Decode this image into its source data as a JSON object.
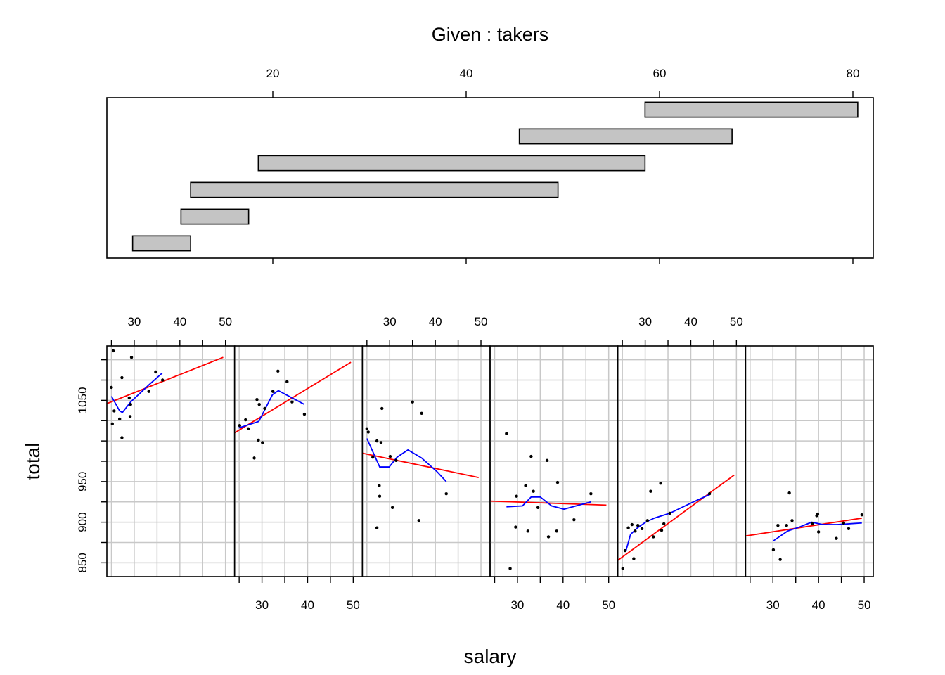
{
  "chart_data": {
    "type": "scatter",
    "title": "Given : takers",
    "xlabel": "salary",
    "ylabel": "total",
    "given": {
      "variable": "takers",
      "range": [
        5,
        82
      ],
      "ticks": [
        20,
        40,
        60,
        80
      ],
      "intervals": [
        [
          5.5,
          11.5
        ],
        [
          10.5,
          17.5
        ],
        [
          11.5,
          49.5
        ],
        [
          18.5,
          58.5
        ],
        [
          45.5,
          67.5
        ],
        [
          58.5,
          80.5
        ]
      ]
    },
    "x_ticks": [
      30,
      40,
      50
    ],
    "y_ticks": [
      850,
      900,
      950,
      1050
    ],
    "xlim": [
      24,
      52
    ],
    "ylim": [
      833,
      1117
    ],
    "grid": true,
    "fit_colors": {
      "linear": "#ff0000",
      "loess": "#0000ff"
    },
    "panels": [
      {
        "points": [
          [
            25.0,
            1066
          ],
          [
            25.4,
            1111
          ],
          [
            25.2,
            1021
          ],
          [
            25.6,
            1037
          ],
          [
            26.8,
            1027
          ],
          [
            27.3,
            1004
          ],
          [
            27.3,
            1078
          ],
          [
            28.9,
            1053
          ],
          [
            29.2,
            1045
          ],
          [
            29.1,
            1030
          ],
          [
            29.4,
            1103
          ],
          [
            33.2,
            1061
          ],
          [
            34.7,
            1085
          ],
          [
            36.2,
            1075
          ]
        ],
        "linear": [
          [
            24.0,
            1046
          ],
          [
            49.5,
            1103
          ]
        ],
        "loess": [
          [
            25.0,
            1055
          ],
          [
            26.8,
            1037
          ],
          [
            27.4,
            1035
          ],
          [
            29.2,
            1048
          ],
          [
            33.2,
            1069
          ],
          [
            36.2,
            1084
          ]
        ]
      },
      {
        "points": [
          [
            25.1,
            1019
          ],
          [
            26.4,
            1026
          ],
          [
            27.0,
            1015
          ],
          [
            28.3,
            979
          ],
          [
            28.9,
            1051
          ],
          [
            29.4,
            1045
          ],
          [
            29.2,
            1001
          ],
          [
            30.1,
            998
          ],
          [
            30.6,
            1040
          ],
          [
            32.4,
            1061
          ],
          [
            33.5,
            1086
          ],
          [
            35.5,
            1073
          ],
          [
            36.6,
            1048
          ],
          [
            39.3,
            1033
          ]
        ],
        "linear": [
          [
            24.0,
            1010
          ],
          [
            49.5,
            1097
          ]
        ],
        "loess": [
          [
            24.9,
            1016
          ],
          [
            27.1,
            1020
          ],
          [
            29.3,
            1024
          ],
          [
            32.3,
            1057
          ],
          [
            33.6,
            1062
          ],
          [
            39.3,
            1045
          ]
        ]
      },
      {
        "points": [
          [
            25.0,
            1015
          ],
          [
            25.3,
            1011
          ],
          [
            26.3,
            980
          ],
          [
            27.2,
            1000
          ],
          [
            27.8,
            932
          ],
          [
            27.7,
            945
          ],
          [
            28.1,
            998
          ],
          [
            28.3,
            1040
          ],
          [
            30.1,
            981
          ],
          [
            27.2,
            893
          ],
          [
            30.6,
            918
          ],
          [
            31.4,
            976
          ],
          [
            35.0,
            1048
          ],
          [
            36.4,
            902
          ],
          [
            37.0,
            1034
          ],
          [
            42.4,
            935
          ]
        ],
        "linear": [
          [
            24.0,
            985
          ],
          [
            49.5,
            955
          ]
        ],
        "loess": [
          [
            25.0,
            1003
          ],
          [
            27.8,
            968
          ],
          [
            29.9,
            968
          ],
          [
            31.6,
            980
          ],
          [
            34.0,
            989
          ],
          [
            37.0,
            979
          ],
          [
            40.4,
            962
          ],
          [
            42.4,
            950
          ]
        ]
      },
      {
        "points": [
          [
            27.6,
            1009
          ],
          [
            28.4,
            843
          ],
          [
            29.6,
            894
          ],
          [
            29.8,
            932
          ],
          [
            31.8,
            945
          ],
          [
            32.3,
            889
          ],
          [
            33.0,
            981
          ],
          [
            34.5,
            918
          ],
          [
            33.5,
            938
          ],
          [
            36.5,
            976
          ],
          [
            36.8,
            882
          ],
          [
            38.8,
            949
          ],
          [
            38.6,
            889
          ],
          [
            42.4,
            903
          ],
          [
            46.1,
            935
          ]
        ],
        "linear": [
          [
            24.0,
            926
          ],
          [
            49.5,
            921
          ]
        ],
        "loess": [
          [
            27.6,
            919
          ],
          [
            31.1,
            920
          ],
          [
            33.0,
            931
          ],
          [
            35.0,
            931
          ],
          [
            37.5,
            920
          ],
          [
            40.2,
            916
          ],
          [
            44.1,
            922
          ],
          [
            46.1,
            925
          ]
        ]
      },
      {
        "points": [
          [
            25.1,
            843
          ],
          [
            25.6,
            865
          ],
          [
            26.3,
            893
          ],
          [
            27.1,
            897
          ],
          [
            27.5,
            855
          ],
          [
            27.8,
            889
          ],
          [
            28.4,
            896
          ],
          [
            29.3,
            892
          ],
          [
            30.5,
            902
          ],
          [
            31.2,
            938
          ],
          [
            31.8,
            882
          ],
          [
            33.4,
            948
          ],
          [
            33.6,
            890
          ],
          [
            34.1,
            898
          ],
          [
            35.4,
            911
          ],
          [
            44.1,
            935
          ]
        ],
        "linear": [
          [
            24.0,
            853
          ],
          [
            49.5,
            958
          ]
        ],
        "loess": [
          [
            25.8,
            865
          ],
          [
            26.8,
            885
          ],
          [
            28.3,
            893
          ],
          [
            30.1,
            900
          ],
          [
            32.0,
            905
          ],
          [
            35.4,
            911
          ],
          [
            40.6,
            925
          ],
          [
            44.1,
            934
          ]
        ]
      },
      {
        "points": [
          [
            30.1,
            866
          ],
          [
            31.1,
            896
          ],
          [
            31.6,
            854
          ],
          [
            33.0,
            896
          ],
          [
            33.6,
            936
          ],
          [
            34.2,
            902
          ],
          [
            38.6,
            898
          ],
          [
            39.6,
            908
          ],
          [
            39.8,
            910
          ],
          [
            40.0,
            888
          ],
          [
            43.9,
            880
          ],
          [
            45.5,
            899
          ],
          [
            46.6,
            892
          ],
          [
            49.5,
            909
          ]
        ],
        "linear": [
          [
            24.0,
            883
          ],
          [
            49.5,
            905
          ]
        ],
        "loess": [
          [
            30.1,
            877
          ],
          [
            33.2,
            889
          ],
          [
            35.8,
            894
          ],
          [
            38.5,
            900
          ],
          [
            41.0,
            897
          ],
          [
            44.1,
            897
          ],
          [
            49.5,
            899
          ]
        ]
      }
    ]
  }
}
